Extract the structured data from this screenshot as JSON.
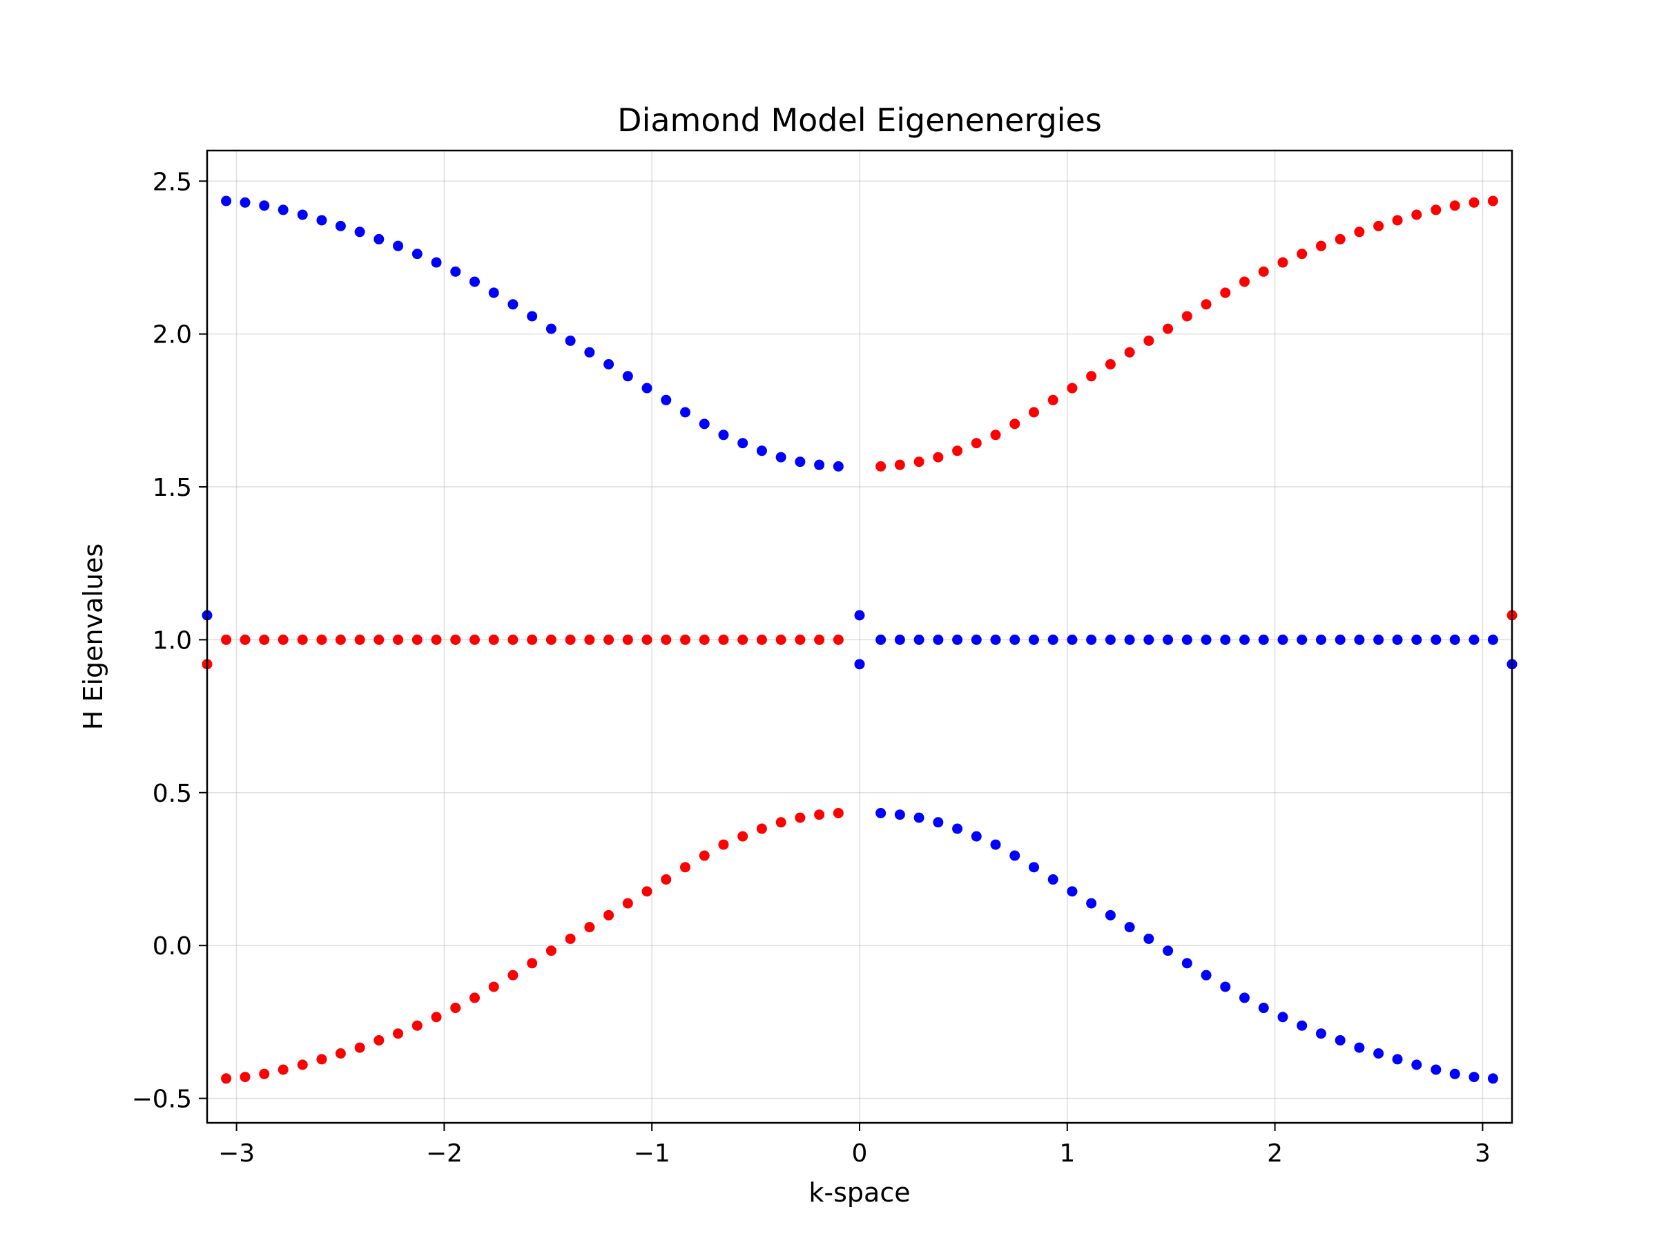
{
  "chart_data": {
    "type": "scatter",
    "title": "Diamond Model Eigenenergies",
    "xlabel": "k-space",
    "ylabel": "H Eigenvalues",
    "xlim": [
      -3.14159,
      3.14159
    ],
    "ylim": [
      -0.58,
      2.6
    ],
    "xticks": [
      -3,
      -2,
      -1,
      0,
      1,
      2,
      3
    ],
    "xtick_labels": [
      "−3",
      "−2",
      "−1",
      "0",
      "1",
      "2",
      "3"
    ],
    "yticks": [
      -0.5,
      0.0,
      0.5,
      1.0,
      1.5,
      2.0,
      2.5
    ],
    "ytick_labels": [
      "−0.5",
      "0.0",
      "0.5",
      "1.0",
      "1.5",
      "2.0",
      "2.5"
    ],
    "grid": true,
    "legend": "none",
    "colors": {
      "red": "#ff0000",
      "blue": "#0000ff"
    },
    "sample_count": 69,
    "series": [
      {
        "color": "#ff0000",
        "description": "red points: upper band for k > 0, lower band for k < 0, flat band for k < 0",
        "points": [
          [
            -3.1416,
            0.92
          ],
          [
            -3.0499,
            -0.435
          ],
          [
            -2.9587,
            -0.43
          ],
          [
            -2.8665,
            -0.42
          ],
          [
            -2.7753,
            -0.406
          ],
          [
            -2.6821,
            -0.39
          ],
          [
            -2.5899,
            -0.372
          ],
          [
            -2.4987,
            -0.353
          ],
          [
            -2.4065,
            -0.334
          ],
          [
            -2.3144,
            -0.31
          ],
          [
            -2.2222,
            -0.288
          ],
          [
            -2.13,
            -0.262
          ],
          [
            -2.0378,
            -0.234
          ],
          [
            -1.9456,
            -0.204
          ],
          [
            -1.8534,
            -0.171
          ],
          [
            -1.7612,
            -0.135
          ],
          [
            -1.6691,
            -0.097
          ],
          [
            -1.5769,
            -0.058
          ],
          [
            -1.4847,
            -0.017
          ],
          [
            -1.3925,
            0.022
          ],
          [
            -1.3003,
            0.06
          ],
          [
            -1.2081,
            0.099
          ],
          [
            -1.1159,
            0.138
          ],
          [
            -1.0238,
            0.177
          ],
          [
            -0.9316,
            0.216
          ],
          [
            -0.8394,
            0.256
          ],
          [
            -0.7472,
            0.294
          ],
          [
            -0.655,
            0.33
          ],
          [
            -0.5628,
            0.357
          ],
          [
            -0.4707,
            0.382
          ],
          [
            -0.3785,
            0.403
          ],
          [
            -0.2863,
            0.418
          ],
          [
            -0.1941,
            0.428
          ],
          [
            -0.1019,
            0.433
          ],
          [
            -3.0499,
            1.0
          ],
          [
            -2.9587,
            1.0
          ],
          [
            -2.8665,
            1.0
          ],
          [
            -2.7753,
            1.0
          ],
          [
            -2.6821,
            1.0
          ],
          [
            -2.5899,
            1.0
          ],
          [
            -2.4987,
            1.0
          ],
          [
            -2.4065,
            1.0
          ],
          [
            -2.3144,
            1.0
          ],
          [
            -2.2222,
            1.0
          ],
          [
            -2.13,
            1.0
          ],
          [
            -2.0378,
            1.0
          ],
          [
            -1.9456,
            1.0
          ],
          [
            -1.8534,
            1.0
          ],
          [
            -1.7612,
            1.0
          ],
          [
            -1.6691,
            1.0
          ],
          [
            -1.5769,
            1.0
          ],
          [
            -1.4847,
            1.0
          ],
          [
            -1.3925,
            1.0
          ],
          [
            -1.3003,
            1.0
          ],
          [
            -1.2081,
            1.0
          ],
          [
            -1.1159,
            1.0
          ],
          [
            -1.0238,
            1.0
          ],
          [
            -0.9316,
            1.0
          ],
          [
            -0.8394,
            1.0
          ],
          [
            -0.7472,
            1.0
          ],
          [
            -0.655,
            1.0
          ],
          [
            -0.5628,
            1.0
          ],
          [
            -0.4707,
            1.0
          ],
          [
            -0.3785,
            1.0
          ],
          [
            -0.2863,
            1.0
          ],
          [
            -0.1941,
            1.0
          ],
          [
            -0.1019,
            1.0
          ],
          [
            0.1019,
            1.567
          ],
          [
            0.1941,
            1.572
          ],
          [
            0.2863,
            1.582
          ],
          [
            0.3785,
            1.597
          ],
          [
            0.4707,
            1.618
          ],
          [
            0.5628,
            1.643
          ],
          [
            0.655,
            1.67
          ],
          [
            0.7472,
            1.706
          ],
          [
            0.8394,
            1.744
          ],
          [
            0.9316,
            1.784
          ],
          [
            1.0238,
            1.823
          ],
          [
            1.1159,
            1.862
          ],
          [
            1.2081,
            1.901
          ],
          [
            1.3003,
            1.94
          ],
          [
            1.3925,
            1.978
          ],
          [
            1.4847,
            2.017
          ],
          [
            1.5769,
            2.058
          ],
          [
            1.6691,
            2.097
          ],
          [
            1.7612,
            2.135
          ],
          [
            1.8534,
            2.171
          ],
          [
            1.9456,
            2.204
          ],
          [
            2.0378,
            2.234
          ],
          [
            2.13,
            2.262
          ],
          [
            2.2222,
            2.288
          ],
          [
            2.3144,
            2.31
          ],
          [
            2.4065,
            2.334
          ],
          [
            2.4987,
            2.353
          ],
          [
            2.5899,
            2.372
          ],
          [
            2.6821,
            2.39
          ],
          [
            2.7753,
            2.406
          ],
          [
            2.8665,
            2.42
          ],
          [
            2.9587,
            2.43
          ],
          [
            3.0499,
            2.435
          ],
          [
            3.1416,
            1.08
          ]
        ]
      },
      {
        "color": "#0000ff",
        "description": "blue points: upper band for k < 0, lower band for k > 0, flat band for k > 0",
        "points": [
          [
            -3.1416,
            1.08
          ],
          [
            -3.0499,
            2.435
          ],
          [
            -2.9587,
            2.43
          ],
          [
            -2.8665,
            2.42
          ],
          [
            -2.7753,
            2.406
          ],
          [
            -2.6821,
            2.39
          ],
          [
            -2.5899,
            2.372
          ],
          [
            -2.4987,
            2.353
          ],
          [
            -2.4065,
            2.334
          ],
          [
            -2.3144,
            2.31
          ],
          [
            -2.2222,
            2.288
          ],
          [
            -2.13,
            2.262
          ],
          [
            -2.0378,
            2.234
          ],
          [
            -1.9456,
            2.204
          ],
          [
            -1.8534,
            2.171
          ],
          [
            -1.7612,
            2.135
          ],
          [
            -1.6691,
            2.097
          ],
          [
            -1.5769,
            2.058
          ],
          [
            -1.4847,
            2.017
          ],
          [
            -1.3925,
            1.978
          ],
          [
            -1.3003,
            1.94
          ],
          [
            -1.2081,
            1.901
          ],
          [
            -1.1159,
            1.862
          ],
          [
            -1.0238,
            1.823
          ],
          [
            -0.9316,
            1.784
          ],
          [
            -0.8394,
            1.744
          ],
          [
            -0.7472,
            1.706
          ],
          [
            -0.655,
            1.67
          ],
          [
            -0.5628,
            1.643
          ],
          [
            -0.4707,
            1.618
          ],
          [
            -0.3785,
            1.597
          ],
          [
            -0.2863,
            1.582
          ],
          [
            -0.1941,
            1.572
          ],
          [
            -0.1019,
            1.567
          ],
          [
            0.0,
            1.08
          ],
          [
            0.0,
            0.92
          ],
          [
            0.1019,
            1.0
          ],
          [
            0.1941,
            1.0
          ],
          [
            0.2863,
            1.0
          ],
          [
            0.3785,
            1.0
          ],
          [
            0.4707,
            1.0
          ],
          [
            0.5628,
            1.0
          ],
          [
            0.655,
            1.0
          ],
          [
            0.7472,
            1.0
          ],
          [
            0.8394,
            1.0
          ],
          [
            0.9316,
            1.0
          ],
          [
            1.0238,
            1.0
          ],
          [
            1.1159,
            1.0
          ],
          [
            1.2081,
            1.0
          ],
          [
            1.3003,
            1.0
          ],
          [
            1.3925,
            1.0
          ],
          [
            1.4847,
            1.0
          ],
          [
            1.5769,
            1.0
          ],
          [
            1.6691,
            1.0
          ],
          [
            1.7612,
            1.0
          ],
          [
            1.8534,
            1.0
          ],
          [
            1.9456,
            1.0
          ],
          [
            2.0378,
            1.0
          ],
          [
            2.13,
            1.0
          ],
          [
            2.2222,
            1.0
          ],
          [
            2.3144,
            1.0
          ],
          [
            2.4065,
            1.0
          ],
          [
            2.4987,
            1.0
          ],
          [
            2.5899,
            1.0
          ],
          [
            2.6821,
            1.0
          ],
          [
            2.7753,
            1.0
          ],
          [
            2.8665,
            1.0
          ],
          [
            2.9587,
            1.0
          ],
          [
            3.0499,
            1.0
          ],
          [
            0.1019,
            0.433
          ],
          [
            0.1941,
            0.428
          ],
          [
            0.2863,
            0.418
          ],
          [
            0.3785,
            0.403
          ],
          [
            0.4707,
            0.382
          ],
          [
            0.5628,
            0.357
          ],
          [
            0.655,
            0.33
          ],
          [
            0.7472,
            0.294
          ],
          [
            0.8394,
            0.256
          ],
          [
            0.9316,
            0.216
          ],
          [
            1.0238,
            0.177
          ],
          [
            1.1159,
            0.138
          ],
          [
            1.2081,
            0.099
          ],
          [
            1.3003,
            0.06
          ],
          [
            1.3925,
            0.022
          ],
          [
            1.4847,
            -0.017
          ],
          [
            1.5769,
            -0.058
          ],
          [
            1.6691,
            -0.097
          ],
          [
            1.7612,
            -0.135
          ],
          [
            1.8534,
            -0.171
          ],
          [
            1.9456,
            -0.204
          ],
          [
            2.0378,
            -0.234
          ],
          [
            2.13,
            -0.262
          ],
          [
            2.2222,
            -0.288
          ],
          [
            2.3144,
            -0.31
          ],
          [
            2.4065,
            -0.334
          ],
          [
            2.4987,
            -0.353
          ],
          [
            2.5899,
            -0.372
          ],
          [
            2.6821,
            -0.39
          ],
          [
            2.7753,
            -0.406
          ],
          [
            2.8665,
            -0.42
          ],
          [
            2.9587,
            -0.43
          ],
          [
            3.0499,
            -0.435
          ],
          [
            3.1416,
            0.92
          ]
        ]
      }
    ]
  }
}
